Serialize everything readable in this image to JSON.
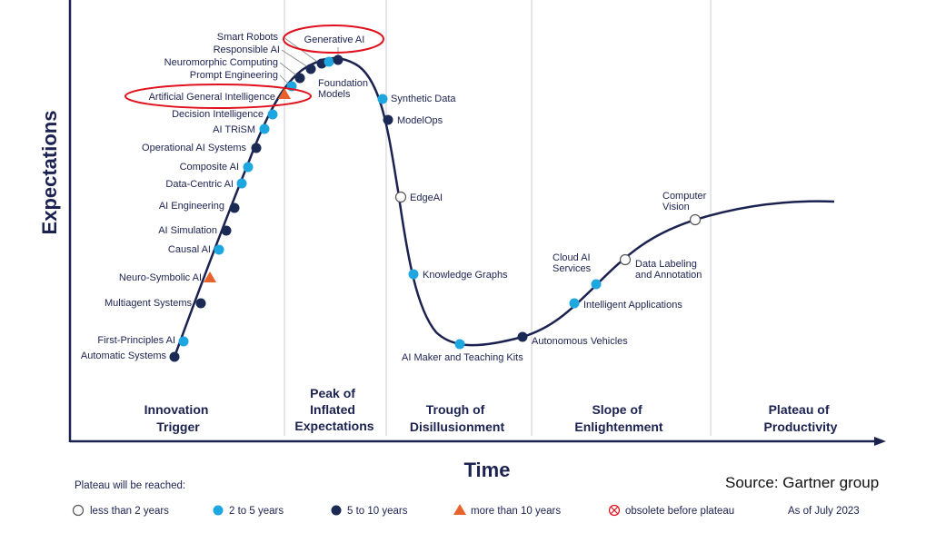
{
  "axes": {
    "y_label": "Expectations",
    "x_label": "Time"
  },
  "phases": [
    {
      "id": "innovation-trigger",
      "lines": [
        "Innovation",
        "Trigger"
      ]
    },
    {
      "id": "peak",
      "lines": [
        "Peak of",
        "Inflated",
        "Expectations"
      ]
    },
    {
      "id": "trough",
      "lines": [
        "Trough of",
        "Disillusionment"
      ]
    },
    {
      "id": "slope",
      "lines": [
        "Slope of",
        "Enlightenment"
      ]
    },
    {
      "id": "plateau",
      "lines": [
        "Plateau of",
        "Productivity"
      ]
    }
  ],
  "technologies": [
    {
      "id": "automatic-systems",
      "label": "Automatic Systems",
      "category": "5-10"
    },
    {
      "id": "first-principles-ai",
      "label": "First-Principles AI",
      "category": "2-5"
    },
    {
      "id": "multiagent-systems",
      "label": "Multiagent Systems",
      "category": "5-10"
    },
    {
      "id": "neuro-symbolic-ai",
      "label": "Neuro-Symbolic AI",
      "category": "10+"
    },
    {
      "id": "causal-ai",
      "label": "Causal AI",
      "category": "2-5"
    },
    {
      "id": "ai-simulation",
      "label": "AI Simulation",
      "category": "5-10"
    },
    {
      "id": "ai-engineering",
      "label": "AI Engineering",
      "category": "5-10"
    },
    {
      "id": "data-centric-ai",
      "label": "Data-Centric AI",
      "category": "2-5"
    },
    {
      "id": "composite-ai",
      "label": "Composite AI",
      "category": "2-5"
    },
    {
      "id": "operational-ai-systems",
      "label": "Operational AI Systems",
      "category": "5-10"
    },
    {
      "id": "ai-trism",
      "label": "AI TRiSM",
      "category": "2-5"
    },
    {
      "id": "decision-intelligence",
      "label": "Decision Intelligence",
      "category": "2-5"
    },
    {
      "id": "artificial-general-intelligence",
      "label": "Artificial General Intelligence",
      "category": "10+"
    },
    {
      "id": "prompt-engineering",
      "label": "Prompt Engineering",
      "category": "2-5"
    },
    {
      "id": "neuromorphic-computing",
      "label": "Neuromorphic Computing",
      "category": "5-10"
    },
    {
      "id": "responsible-ai",
      "label": "Responsible AI",
      "category": "5-10"
    },
    {
      "id": "smart-robots",
      "label": "Smart Robots",
      "category": "5-10"
    },
    {
      "id": "generative-ai",
      "label": "Generative AI",
      "category": "2-5"
    },
    {
      "id": "foundation-models",
      "label": "Foundation Models",
      "category": "5-10"
    },
    {
      "id": "synthetic-data",
      "label": "Synthetic Data",
      "category": "2-5"
    },
    {
      "id": "modelops",
      "label": "ModelOps",
      "category": "5-10"
    },
    {
      "id": "edgeai",
      "label": "EdgeAI",
      "category": "<2"
    },
    {
      "id": "knowledge-graphs",
      "label": "Knowledge Graphs",
      "category": "2-5"
    },
    {
      "id": "ai-maker-teaching-kits",
      "label": "AI Maker and Teaching Kits",
      "category": "2-5"
    },
    {
      "id": "autonomous-vehicles",
      "label": "Autonomous Vehicles",
      "category": "5-10"
    },
    {
      "id": "intelligent-applications",
      "label": "Intelligent Applications",
      "category": "2-5"
    },
    {
      "id": "cloud-ai-services",
      "label": "Cloud AI Services",
      "category": "2-5"
    },
    {
      "id": "data-labeling-annotation",
      "label": "Data Labeling and Annotation",
      "category": "<2"
    },
    {
      "id": "computer-vision",
      "label": "Computer Vision",
      "category": "<2"
    }
  ],
  "highlighted": [
    "generative-ai",
    "artificial-general-intelligence"
  ],
  "legend": {
    "title": "Plateau will be reached:",
    "items": [
      {
        "symbol": "hollow-circle",
        "label": "less than 2 years"
      },
      {
        "symbol": "light-circle",
        "label": "2 to 5 years"
      },
      {
        "symbol": "dark-circle",
        "label": "5 to 10 years"
      },
      {
        "symbol": "triangle",
        "label": "more than 10 years"
      },
      {
        "symbol": "crossed-circle",
        "label": "obsolete before plateau"
      }
    ],
    "as_of": "As of July 2023"
  },
  "source": "Source: Gartner group",
  "colors": {
    "navy": "#1b2250",
    "light_blue": "#1da6e0",
    "dark_navy": "#1b2a55",
    "orange": "#e8632c",
    "red_highlight": "#e0101c",
    "divider": "#e6e6ea"
  }
}
